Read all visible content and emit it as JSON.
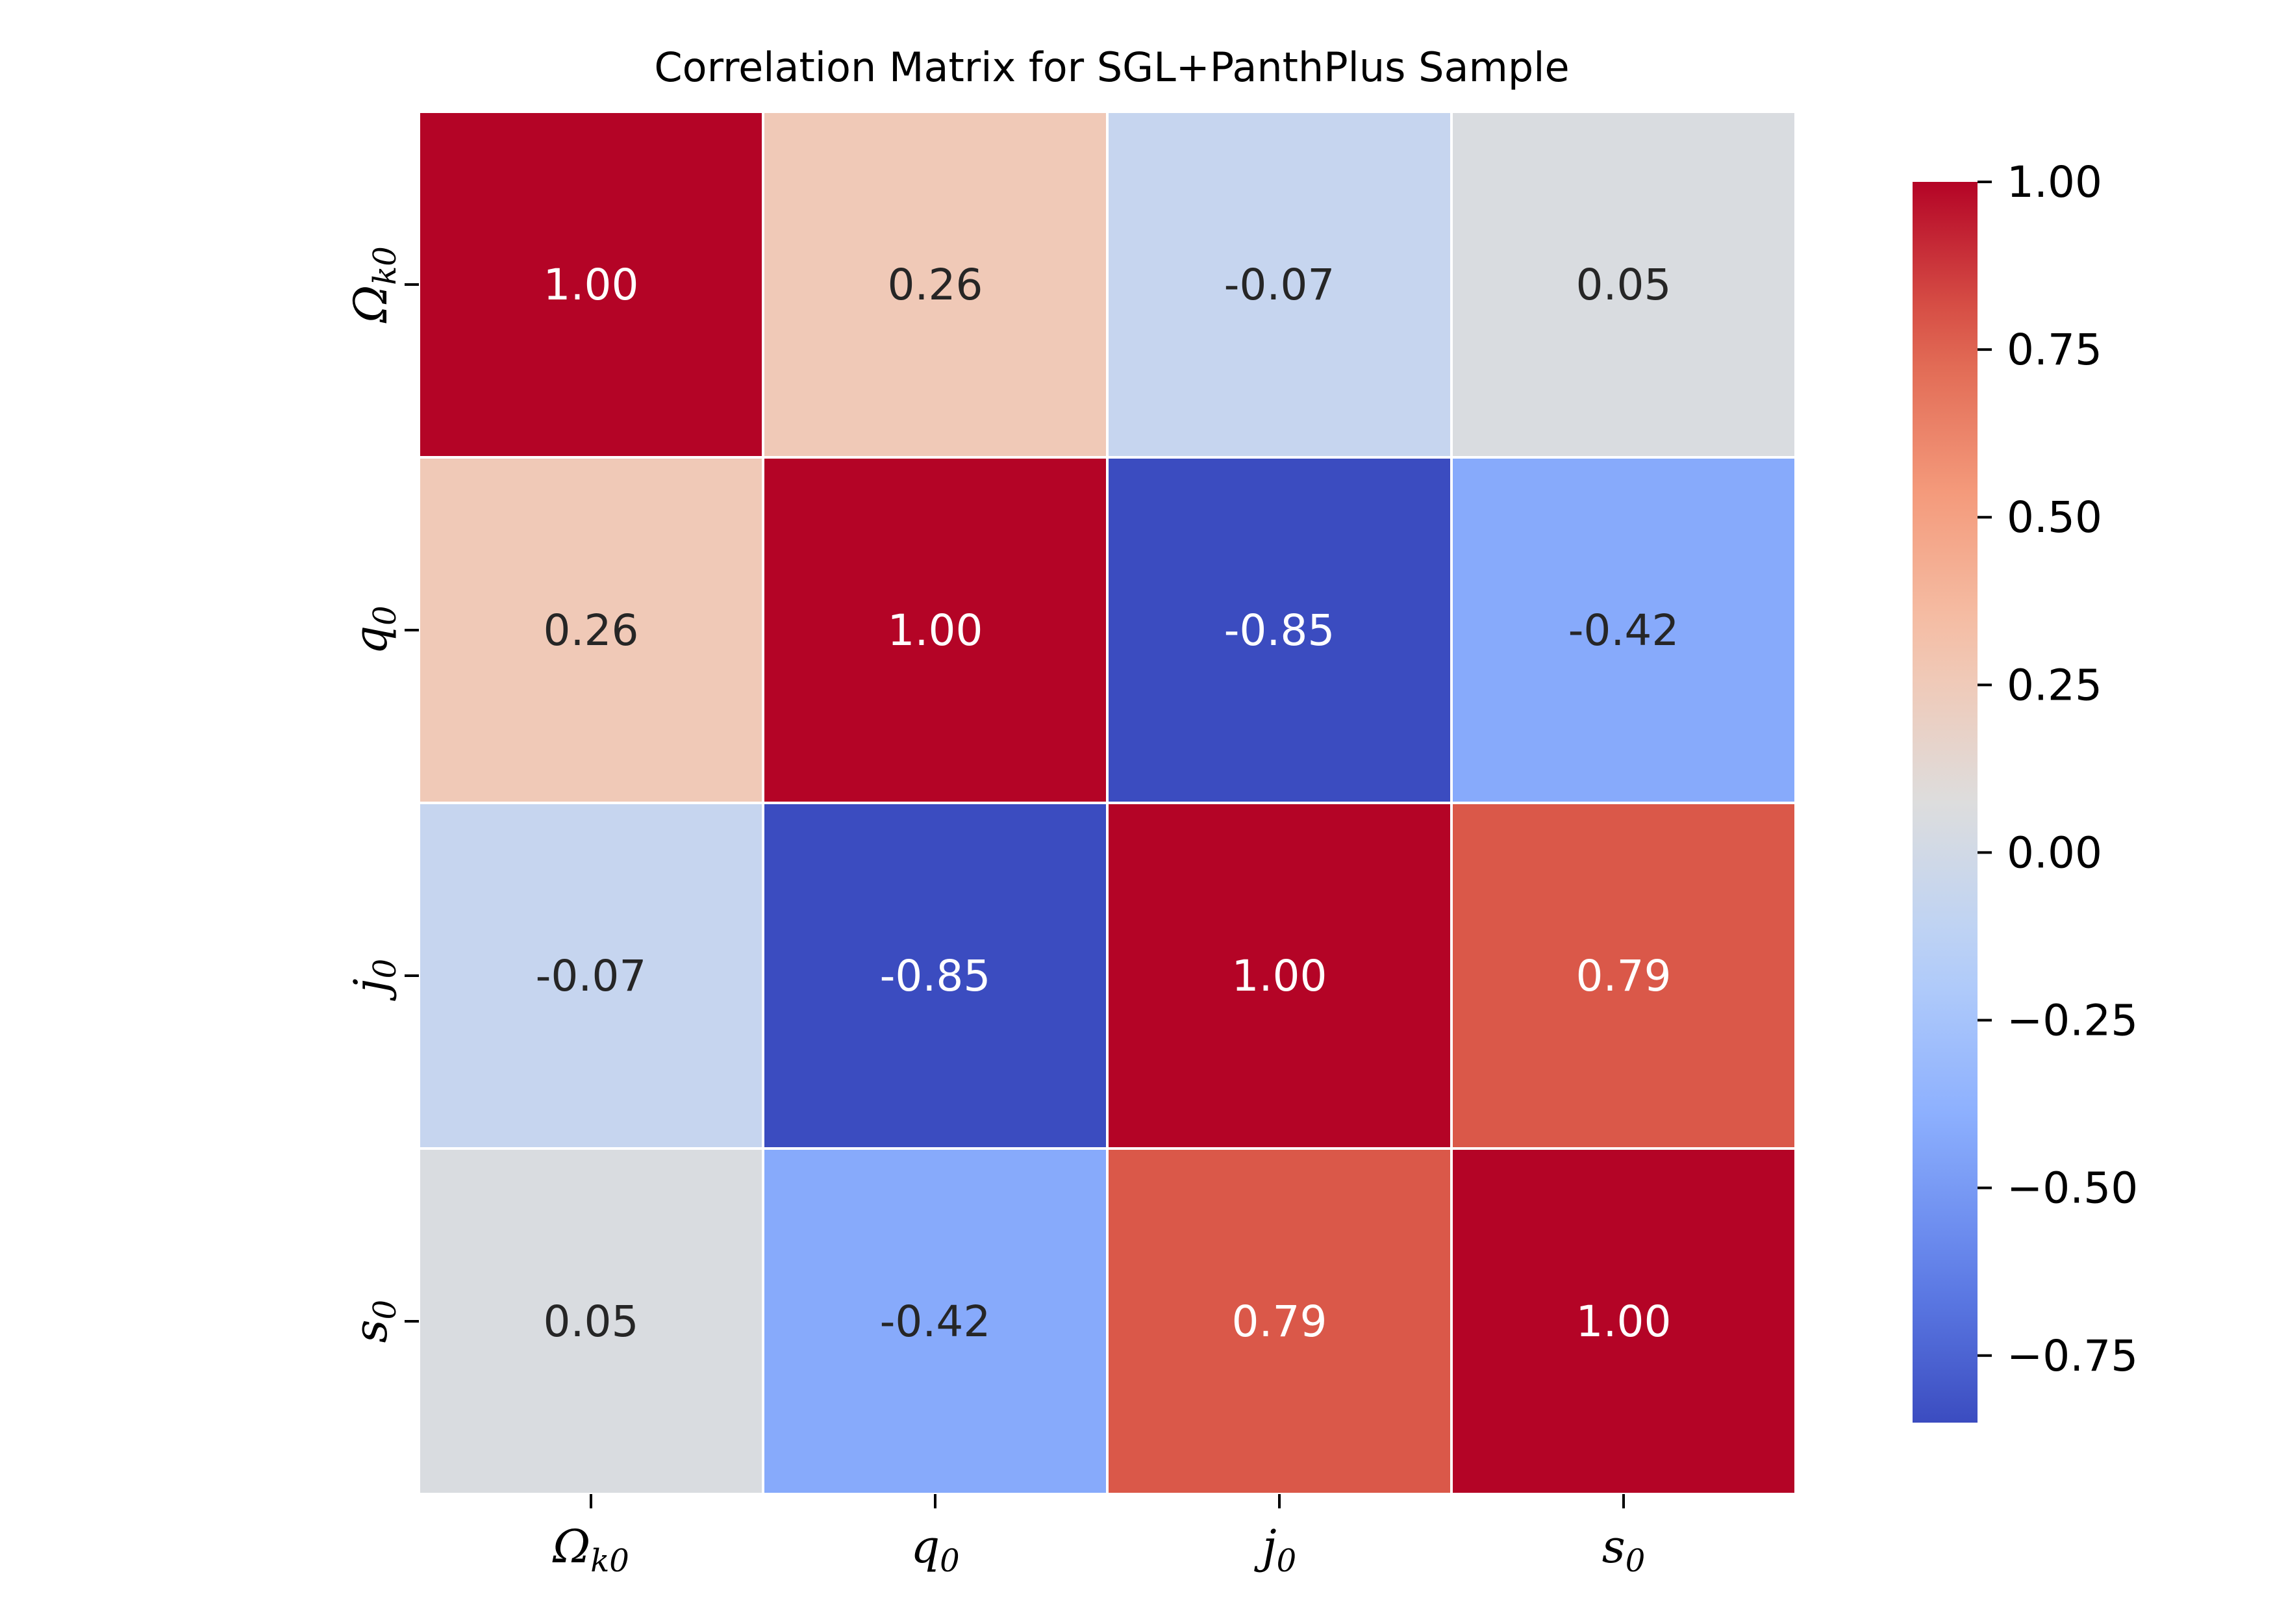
{
  "chart_data": {
    "type": "heatmap",
    "title": "Correlation Matrix for SGL+PanthPlus Sample",
    "variables": [
      {
        "base": "Ω",
        "sub": "k0"
      },
      {
        "base": "q",
        "sub": "0"
      },
      {
        "base": "j",
        "sub": "0"
      },
      {
        "base": "s",
        "sub": "0"
      }
    ],
    "matrix": [
      [
        1.0,
        0.26,
        -0.07,
        0.05
      ],
      [
        0.26,
        1.0,
        -0.85,
        -0.42
      ],
      [
        -0.07,
        -0.85,
        1.0,
        0.79
      ],
      [
        0.05,
        -0.42,
        0.79,
        1.0
      ]
    ],
    "value_labels": [
      [
        "1.00",
        "0.26",
        "-0.07",
        "0.05"
      ],
      [
        "0.26",
        "1.00",
        "-0.85",
        "-0.42"
      ],
      [
        "-0.07",
        "-0.85",
        "1.00",
        "0.79"
      ],
      [
        "0.05",
        "-0.42",
        "0.79",
        "1.00"
      ]
    ],
    "colormap": "coolwarm",
    "color_range": [
      -0.85,
      1.0
    ],
    "colorbar": {
      "ticks": [
        1.0,
        0.75,
        0.5,
        0.25,
        0.0,
        -0.25,
        -0.5,
        -0.75
      ],
      "tick_labels": [
        "1.00",
        "0.75",
        "0.50",
        "0.25",
        "0.00",
        "−0.25",
        "−0.50",
        "−0.75"
      ],
      "position": "right"
    },
    "grid_line_color": "#ffffff"
  }
}
